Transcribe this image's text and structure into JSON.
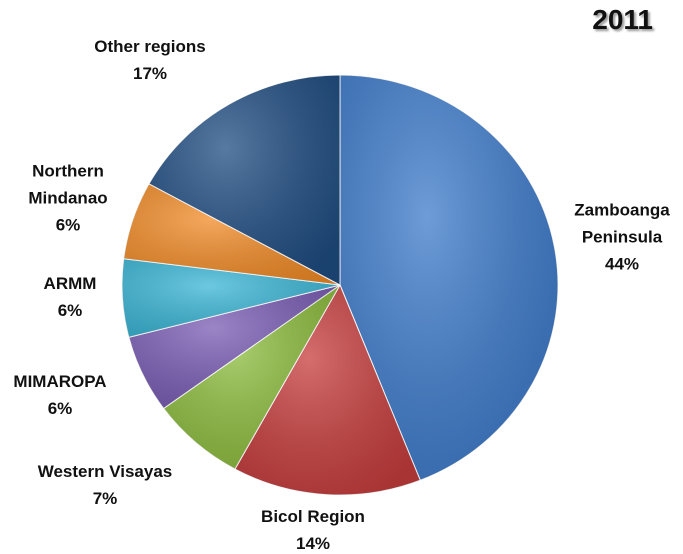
{
  "chart_data": {
    "type": "pie",
    "title": "2011",
    "categories": [
      "Zamboanga Peninsula",
      "Bicol Region",
      "Western Visayas",
      "MIMAROPA",
      "ARMM",
      "Northern Mindanao",
      "Other regions"
    ],
    "values": [
      44,
      14,
      7,
      6,
      6,
      6,
      17
    ],
    "value_labels": [
      "44%",
      "14%",
      "7%",
      "6%",
      "6%",
      "6%",
      "17%"
    ],
    "colors": [
      "#3d7bcb",
      "#c73d3d",
      "#8dbd3e",
      "#7a5db5",
      "#3bb6d6",
      "#f28c28",
      "#1f4d82"
    ]
  }
}
